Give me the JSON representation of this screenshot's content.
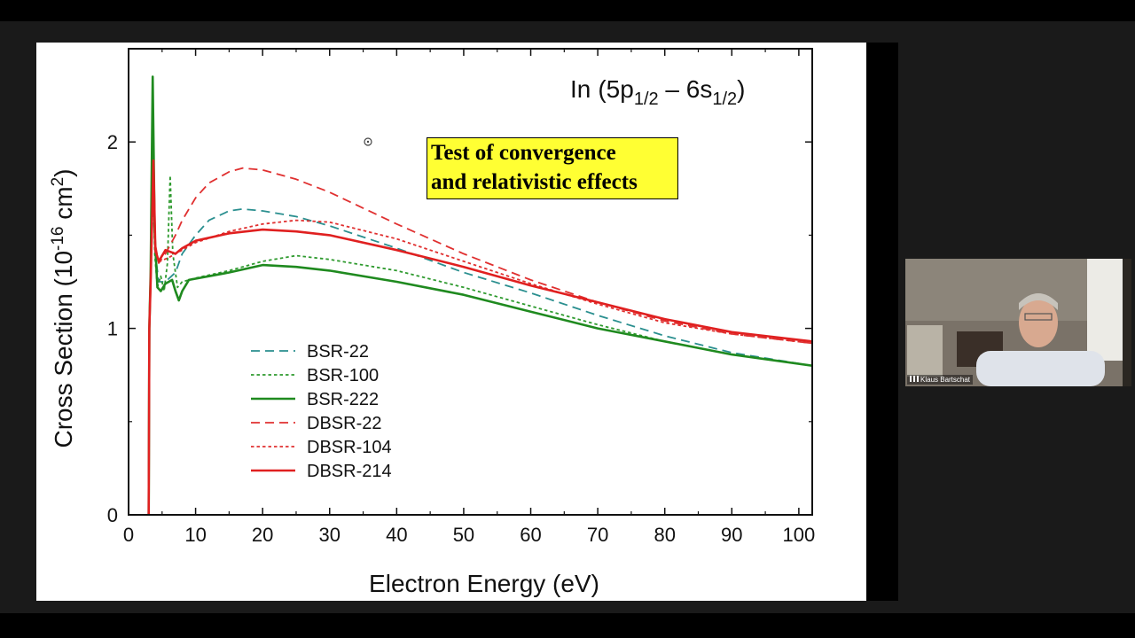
{
  "meeting": {
    "participant_name": "Klaus Bartschat"
  },
  "slide": {
    "annotation_lines": [
      "Test of convergence",
      "and relativistic effects"
    ],
    "annotation_bg": "#ffff33"
  },
  "chart_data": {
    "type": "line",
    "title": "In (5p1/2 – 6s1/2)",
    "title_parts": {
      "element": "In",
      "open": "(5p",
      "sub1": "1/2",
      "dash": " – 6s",
      "sub2": "1/2",
      "close": ")"
    },
    "xlabel": "Electron Energy (eV)",
    "ylabel_parts": {
      "main": "Cross Section (10",
      "exp1": "-16",
      "mid": " cm",
      "exp2": "2",
      "end": ")"
    },
    "xlim": [
      0,
      102
    ],
    "ylim": [
      0,
      2.5
    ],
    "xticks": [
      0,
      10,
      20,
      30,
      40,
      50,
      60,
      70,
      80,
      90,
      100
    ],
    "yticks": [
      0,
      1,
      2
    ],
    "series": [
      {
        "name": "BSR-22",
        "color": "#2a8f8f",
        "style": "dashed",
        "width": 1.8,
        "points": [
          [
            3.0,
            0
          ],
          [
            3.1,
            1.0
          ],
          [
            3.3,
            1.3
          ],
          [
            3.7,
            1.7
          ],
          [
            4.0,
            1.4
          ],
          [
            4.5,
            1.25
          ],
          [
            5.5,
            1.25
          ],
          [
            7,
            1.3
          ],
          [
            8,
            1.4
          ],
          [
            10,
            1.5
          ],
          [
            12,
            1.58
          ],
          [
            15,
            1.63
          ],
          [
            17,
            1.64
          ],
          [
            20,
            1.63
          ],
          [
            25,
            1.6
          ],
          [
            30,
            1.55
          ],
          [
            40,
            1.43
          ],
          [
            50,
            1.3
          ],
          [
            60,
            1.19
          ],
          [
            70,
            1.07
          ],
          [
            80,
            0.96
          ],
          [
            90,
            0.87
          ],
          [
            102,
            0.8
          ]
        ]
      },
      {
        "name": "BSR-100",
        "color": "#2e9a2e",
        "style": "dotted",
        "width": 1.8,
        "points": [
          [
            3.0,
            0
          ],
          [
            3.1,
            1.0
          ],
          [
            3.3,
            1.3
          ],
          [
            3.6,
            2.0
          ],
          [
            3.9,
            1.4
          ],
          [
            4.3,
            1.22
          ],
          [
            4.8,
            1.28
          ],
          [
            5.3,
            1.2
          ],
          [
            5.8,
            1.35
          ],
          [
            6.2,
            1.82
          ],
          [
            6.6,
            1.4
          ],
          [
            7.3,
            1.22
          ],
          [
            8,
            1.25
          ],
          [
            10,
            1.27
          ],
          [
            15,
            1.31
          ],
          [
            20,
            1.36
          ],
          [
            25,
            1.39
          ],
          [
            30,
            1.37
          ],
          [
            40,
            1.31
          ],
          [
            50,
            1.22
          ],
          [
            60,
            1.12
          ],
          [
            70,
            1.02
          ],
          [
            80,
            0.93
          ],
          [
            90,
            0.86
          ],
          [
            102,
            0.8
          ]
        ]
      },
      {
        "name": "BSR-222",
        "color": "#1f8a1f",
        "style": "solid",
        "width": 2.6,
        "points": [
          [
            3.0,
            0
          ],
          [
            3.1,
            1.0
          ],
          [
            3.3,
            1.3
          ],
          [
            3.6,
            2.35
          ],
          [
            3.9,
            1.5
          ],
          [
            4.3,
            1.22
          ],
          [
            4.8,
            1.2
          ],
          [
            5.5,
            1.24
          ],
          [
            6.5,
            1.26
          ],
          [
            7,
            1.2
          ],
          [
            7.5,
            1.15
          ],
          [
            8,
            1.2
          ],
          [
            9,
            1.26
          ],
          [
            12,
            1.28
          ],
          [
            15,
            1.3
          ],
          [
            20,
            1.34
          ],
          [
            25,
            1.33
          ],
          [
            30,
            1.31
          ],
          [
            40,
            1.25
          ],
          [
            50,
            1.18
          ],
          [
            60,
            1.09
          ],
          [
            70,
            1.0
          ],
          [
            80,
            0.93
          ],
          [
            90,
            0.86
          ],
          [
            102,
            0.8
          ]
        ]
      },
      {
        "name": "DBSR-22",
        "color": "#e03030",
        "style": "dashed",
        "width": 1.8,
        "points": [
          [
            3.0,
            0
          ],
          [
            3.1,
            1.0
          ],
          [
            3.3,
            1.25
          ],
          [
            3.7,
            1.9
          ],
          [
            4.0,
            1.45
          ],
          [
            4.5,
            1.35
          ],
          [
            5.5,
            1.4
          ],
          [
            7,
            1.5
          ],
          [
            8,
            1.58
          ],
          [
            10,
            1.7
          ],
          [
            12,
            1.78
          ],
          [
            15,
            1.84
          ],
          [
            17,
            1.86
          ],
          [
            20,
            1.85
          ],
          [
            25,
            1.8
          ],
          [
            30,
            1.73
          ],
          [
            40,
            1.56
          ],
          [
            50,
            1.4
          ],
          [
            60,
            1.26
          ],
          [
            70,
            1.14
          ],
          [
            80,
            1.04
          ],
          [
            90,
            0.97
          ],
          [
            102,
            0.92
          ]
        ]
      },
      {
        "name": "DBSR-104",
        "color": "#e03030",
        "style": "dotted",
        "width": 1.8,
        "points": [
          [
            3.0,
            0
          ],
          [
            3.1,
            1.0
          ],
          [
            3.3,
            1.25
          ],
          [
            3.7,
            1.9
          ],
          [
            4.0,
            1.4
          ],
          [
            4.7,
            1.36
          ],
          [
            6,
            1.38
          ],
          [
            8,
            1.42
          ],
          [
            10,
            1.46
          ],
          [
            15,
            1.52
          ],
          [
            20,
            1.56
          ],
          [
            25,
            1.58
          ],
          [
            30,
            1.57
          ],
          [
            40,
            1.48
          ],
          [
            50,
            1.36
          ],
          [
            60,
            1.24
          ],
          [
            70,
            1.13
          ],
          [
            80,
            1.03
          ],
          [
            90,
            0.97
          ],
          [
            102,
            0.92
          ]
        ]
      },
      {
        "name": "DBSR-214",
        "color": "#e02020",
        "style": "solid",
        "width": 2.6,
        "points": [
          [
            3.0,
            0
          ],
          [
            3.1,
            1.0
          ],
          [
            3.3,
            1.25
          ],
          [
            3.7,
            1.9
          ],
          [
            4.0,
            1.42
          ],
          [
            4.5,
            1.36
          ],
          [
            5.5,
            1.42
          ],
          [
            7,
            1.4
          ],
          [
            8,
            1.43
          ],
          [
            10,
            1.47
          ],
          [
            15,
            1.51
          ],
          [
            20,
            1.53
          ],
          [
            25,
            1.52
          ],
          [
            30,
            1.5
          ],
          [
            40,
            1.42
          ],
          [
            50,
            1.33
          ],
          [
            60,
            1.23
          ],
          [
            70,
            1.14
          ],
          [
            80,
            1.05
          ],
          [
            90,
            0.98
          ],
          [
            102,
            0.93
          ]
        ]
      }
    ]
  }
}
